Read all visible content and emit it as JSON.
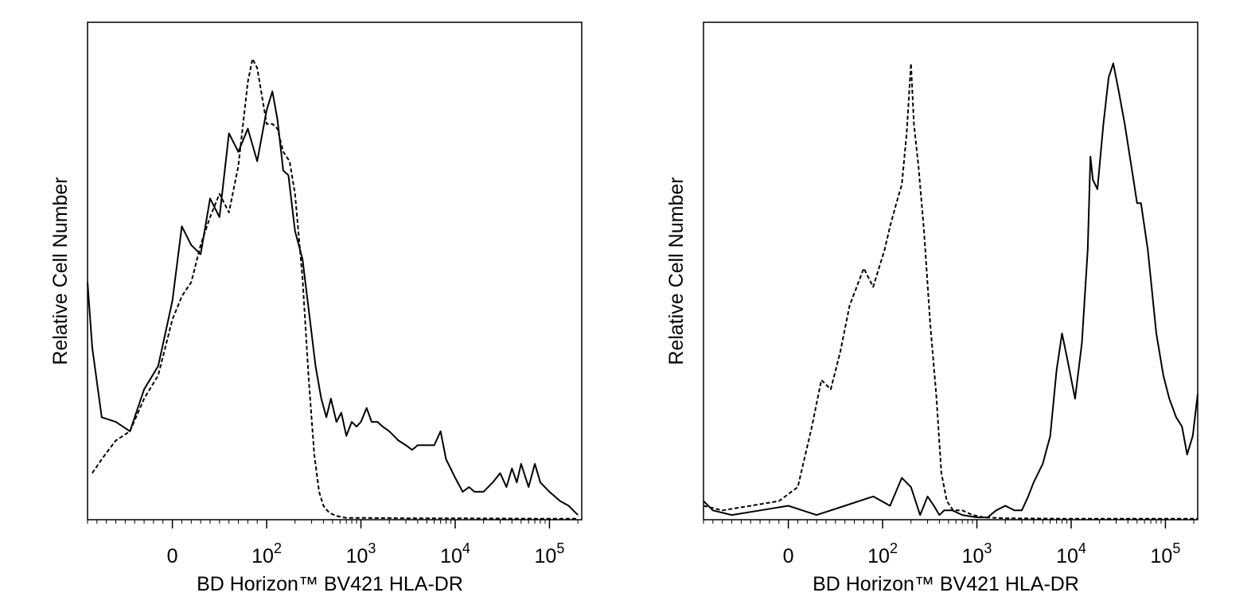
{
  "chart_data": [
    {
      "type": "line",
      "xlabel": "BD Horizon™ BV421 HLA-DR",
      "ylabel": "Relative Cell Number",
      "x_scale": "biexponential",
      "xlim": [
        -90,
        220000
      ],
      "ylim": [
        0,
        1
      ],
      "grid": false,
      "tick_labels": [
        {
          "value": 0,
          "base": "0",
          "exp": ""
        },
        {
          "value": 100,
          "base": "10",
          "exp": "2"
        },
        {
          "value": 1000,
          "base": "10",
          "exp": "3"
        },
        {
          "value": 10000,
          "base": "10",
          "exp": "4"
        },
        {
          "value": 100000,
          "base": "10",
          "exp": "5"
        }
      ],
      "series": [
        {
          "style": "solid",
          "points": [
            [
              -90,
              0.51
            ],
            [
              -85,
              0.37
            ],
            [
              -75,
              0.22
            ],
            [
              -60,
              0.21
            ],
            [
              -45,
              0.19
            ],
            [
              -30,
              0.28
            ],
            [
              -15,
              0.33
            ],
            [
              0,
              0.47
            ],
            [
              10,
              0.63
            ],
            [
              20,
              0.59
            ],
            [
              30,
              0.57
            ],
            [
              40,
              0.69
            ],
            [
              50,
              0.65
            ],
            [
              60,
              0.83
            ],
            [
              70,
              0.79
            ],
            [
              80,
              0.84
            ],
            [
              90,
              0.77
            ],
            [
              100,
              0.88
            ],
            [
              115,
              0.92
            ],
            [
              130,
              0.86
            ],
            [
              150,
              0.75
            ],
            [
              170,
              0.74
            ],
            [
              200,
              0.62
            ],
            [
              240,
              0.56
            ],
            [
              280,
              0.45
            ],
            [
              330,
              0.33
            ],
            [
              380,
              0.26
            ],
            [
              430,
              0.22
            ],
            [
              480,
              0.26
            ],
            [
              550,
              0.21
            ],
            [
              620,
              0.23
            ],
            [
              700,
              0.18
            ],
            [
              800,
              0.21
            ],
            [
              900,
              0.2
            ],
            [
              1000,
              0.21
            ],
            [
              1150,
              0.24
            ],
            [
              1300,
              0.21
            ],
            [
              1500,
              0.21
            ],
            [
              1700,
              0.2
            ],
            [
              2000,
              0.19
            ],
            [
              2500,
              0.17
            ],
            [
              3000,
              0.16
            ],
            [
              3500,
              0.15
            ],
            [
              4000,
              0.16
            ],
            [
              5000,
              0.16
            ],
            [
              6000,
              0.16
            ],
            [
              7000,
              0.19
            ],
            [
              8000,
              0.13
            ],
            [
              10000,
              0.09
            ],
            [
              12000,
              0.06
            ],
            [
              14000,
              0.07
            ],
            [
              16000,
              0.06
            ],
            [
              20000,
              0.06
            ],
            [
              25000,
              0.08
            ],
            [
              30000,
              0.1
            ],
            [
              35000,
              0.07
            ],
            [
              40000,
              0.11
            ],
            [
              45000,
              0.08
            ],
            [
              50000,
              0.12
            ],
            [
              60000,
              0.07
            ],
            [
              70000,
              0.12
            ],
            [
              80000,
              0.08
            ],
            [
              100000,
              0.06
            ],
            [
              130000,
              0.04
            ],
            [
              160000,
              0.03
            ],
            [
              200000,
              0.01
            ]
          ]
        },
        {
          "style": "dashed",
          "points": [
            [
              -85,
              0.1
            ],
            [
              -75,
              0.13
            ],
            [
              -60,
              0.17
            ],
            [
              -45,
              0.19
            ],
            [
              -30,
              0.26
            ],
            [
              -15,
              0.31
            ],
            [
              0,
              0.43
            ],
            [
              10,
              0.48
            ],
            [
              20,
              0.51
            ],
            [
              30,
              0.59
            ],
            [
              40,
              0.65
            ],
            [
              50,
              0.7
            ],
            [
              60,
              0.66
            ],
            [
              70,
              0.76
            ],
            [
              80,
              0.94
            ],
            [
              85,
              0.99
            ],
            [
              90,
              0.97
            ],
            [
              100,
              0.85
            ],
            [
              115,
              0.85
            ],
            [
              130,
              0.84
            ],
            [
              150,
              0.79
            ],
            [
              175,
              0.77
            ],
            [
              200,
              0.7
            ],
            [
              240,
              0.52
            ],
            [
              280,
              0.3
            ],
            [
              320,
              0.14
            ],
            [
              360,
              0.06
            ],
            [
              400,
              0.03
            ],
            [
              460,
              0.015
            ],
            [
              550,
              0.008
            ],
            [
              700,
              0.004
            ],
            [
              1000,
              0.004
            ],
            [
              3000,
              0.003
            ],
            [
              10000,
              0.003
            ],
            [
              100000,
              0.002
            ],
            [
              200000,
              0.002
            ]
          ]
        }
      ]
    },
    {
      "type": "line",
      "xlabel": "BD Horizon™ BV421 HLA-DR",
      "ylabel": "Relative Cell Number",
      "x_scale": "biexponential",
      "xlim": [
        -90,
        220000
      ],
      "ylim": [
        0,
        1
      ],
      "grid": false,
      "tick_labels": [
        {
          "value": 0,
          "base": "0",
          "exp": ""
        },
        {
          "value": 100,
          "base": "10",
          "exp": "2"
        },
        {
          "value": 1000,
          "base": "10",
          "exp": "3"
        },
        {
          "value": 10000,
          "base": "10",
          "exp": "4"
        },
        {
          "value": 100000,
          "base": "10",
          "exp": "5"
        }
      ],
      "series": [
        {
          "style": "solid",
          "points": [
            [
              -90,
              0.04
            ],
            [
              -80,
              0.02
            ],
            [
              -60,
              0.01
            ],
            [
              -30,
              0.02
            ],
            [
              0,
              0.03
            ],
            [
              30,
              0.01
            ],
            [
              60,
              0.03
            ],
            [
              90,
              0.05
            ],
            [
              120,
              0.03
            ],
            [
              160,
              0.09
            ],
            [
              200,
              0.07
            ],
            [
              250,
              0.01
            ],
            [
              300,
              0.05
            ],
            [
              350,
              0.03
            ],
            [
              400,
              0.01
            ],
            [
              450,
              0.02
            ],
            [
              550,
              0.02
            ],
            [
              700,
              0.01
            ],
            [
              1000,
              0.005
            ],
            [
              1300,
              0.005
            ],
            [
              1600,
              0.02
            ],
            [
              2000,
              0.03
            ],
            [
              2500,
              0.02
            ],
            [
              3000,
              0.02
            ],
            [
              3500,
              0.05
            ],
            [
              4000,
              0.08
            ],
            [
              5000,
              0.12
            ],
            [
              6000,
              0.18
            ],
            [
              7000,
              0.32
            ],
            [
              8000,
              0.4
            ],
            [
              9000,
              0.35
            ],
            [
              11000,
              0.26
            ],
            [
              13000,
              0.38
            ],
            [
              15000,
              0.58
            ],
            [
              16000,
              0.78
            ],
            [
              17000,
              0.73
            ],
            [
              19000,
              0.71
            ],
            [
              22000,
              0.85
            ],
            [
              25000,
              0.95
            ],
            [
              28000,
              0.98
            ],
            [
              32000,
              0.92
            ],
            [
              37000,
              0.85
            ],
            [
              45000,
              0.74
            ],
            [
              50000,
              0.68
            ],
            [
              55000,
              0.68
            ],
            [
              65000,
              0.58
            ],
            [
              80000,
              0.4
            ],
            [
              95000,
              0.31
            ],
            [
              110000,
              0.26
            ],
            [
              130000,
              0.22
            ],
            [
              150000,
              0.2
            ],
            [
              170000,
              0.14
            ],
            [
              195000,
              0.18
            ],
            [
              220000,
              0.27
            ]
          ]
        },
        {
          "style": "dashed",
          "points": [
            [
              -90,
              0.03
            ],
            [
              -70,
              0.02
            ],
            [
              -40,
              0.03
            ],
            [
              -10,
              0.04
            ],
            [
              10,
              0.07
            ],
            [
              25,
              0.2
            ],
            [
              35,
              0.3
            ],
            [
              45,
              0.28
            ],
            [
              55,
              0.36
            ],
            [
              65,
              0.46
            ],
            [
              80,
              0.54
            ],
            [
              90,
              0.5
            ],
            [
              105,
              0.58
            ],
            [
              120,
              0.63
            ],
            [
              140,
              0.68
            ],
            [
              160,
              0.72
            ],
            [
              180,
              0.83
            ],
            [
              200,
              0.98
            ],
            [
              215,
              0.85
            ],
            [
              240,
              0.76
            ],
            [
              275,
              0.62
            ],
            [
              320,
              0.42
            ],
            [
              370,
              0.27
            ],
            [
              420,
              0.1
            ],
            [
              480,
              0.04
            ],
            [
              560,
              0.02
            ],
            [
              700,
              0.02
            ],
            [
              900,
              0.01
            ],
            [
              1200,
              0.005
            ],
            [
              2000,
              0.003
            ],
            [
              10000,
              0.002
            ],
            [
              100000,
              0.002
            ],
            [
              220000,
              0.002
            ]
          ]
        }
      ]
    }
  ]
}
